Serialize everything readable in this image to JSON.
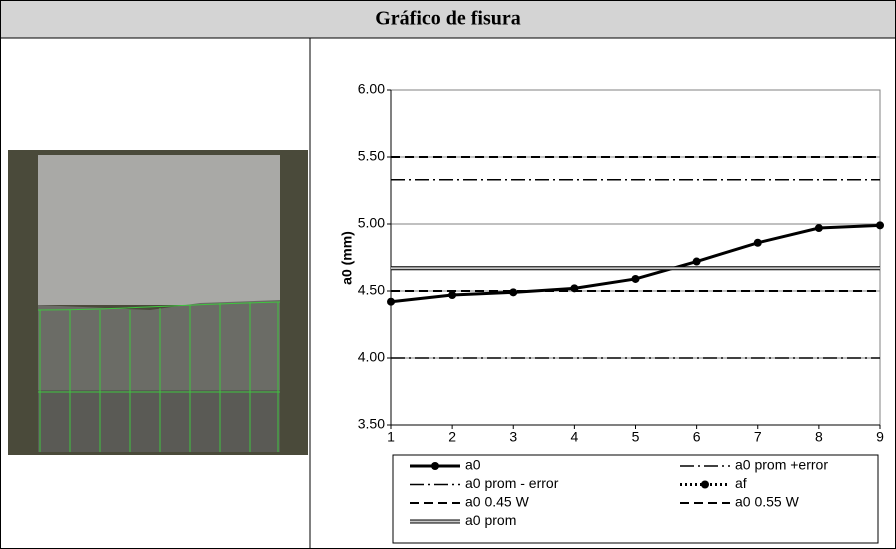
{
  "chart_data": {
    "type": "line",
    "title": "Gráfico de fisura",
    "y_label": "a0 (mm)",
    "x": [
      1,
      2,
      3,
      4,
      5,
      6,
      7,
      8,
      9
    ],
    "xlim": [
      1,
      9
    ],
    "xticks": [
      1,
      2,
      3,
      4,
      5,
      6,
      7,
      8,
      9
    ],
    "ylim": [
      3.5,
      6
    ],
    "yticks": [
      {
        "value": 3.5,
        "label": "3.50"
      },
      {
        "value": 4,
        "label": "4.00"
      },
      {
        "value": 4.5,
        "label": "4.50"
      },
      {
        "value": 5,
        "label": "5.00"
      },
      {
        "value": 5.5,
        "label": "5.50"
      },
      {
        "value": 6,
        "label": "6.00"
      }
    ],
    "grid": true,
    "series": [
      {
        "name": "a0",
        "color": "#000000",
        "line_style": "solid",
        "marker": "circle",
        "values": [
          4.42,
          4.47,
          4.49,
          4.52,
          4.59,
          4.72,
          4.86,
          4.97,
          4.99
        ]
      },
      {
        "name": "a0 prom +error",
        "color": "#000000",
        "line_style": "dashdot",
        "marker": "none",
        "values": [
          5.33,
          5.33,
          5.33,
          5.33,
          5.33,
          5.33,
          5.33,
          5.33,
          5.33
        ]
      },
      {
        "name": "a0 prom - error",
        "color": "#000000",
        "line_style": "dashdot",
        "marker": "none",
        "values": [
          4.0,
          4.0,
          4.0,
          4.0,
          4.0,
          4.0,
          4.0,
          4.0,
          4.0
        ]
      },
      {
        "name": "af",
        "color": "#000000",
        "line_style": "dotted",
        "marker": "circle",
        "values": [
          null,
          null,
          null,
          null,
          null,
          null,
          null,
          null,
          null
        ]
      },
      {
        "name": "a0 0.45 W",
        "color": "#000000",
        "line_style": "dashed",
        "marker": "none",
        "values": [
          4.5,
          4.5,
          4.5,
          4.5,
          4.5,
          4.5,
          4.5,
          4.5,
          4.5
        ]
      },
      {
        "name": "a0 0.55 W",
        "color": "#000000",
        "line_style": "dashed",
        "marker": "none",
        "values": [
          5.5,
          5.5,
          5.5,
          5.5,
          5.5,
          5.5,
          5.5,
          5.5,
          5.5
        ]
      },
      {
        "name": "a0 prom",
        "color": "#c8c8c8",
        "line_style": "double",
        "marker": "none",
        "values": [
          4.67,
          4.67,
          4.67,
          4.67,
          4.67,
          4.67,
          4.67,
          4.67,
          4.67
        ]
      }
    ]
  }
}
